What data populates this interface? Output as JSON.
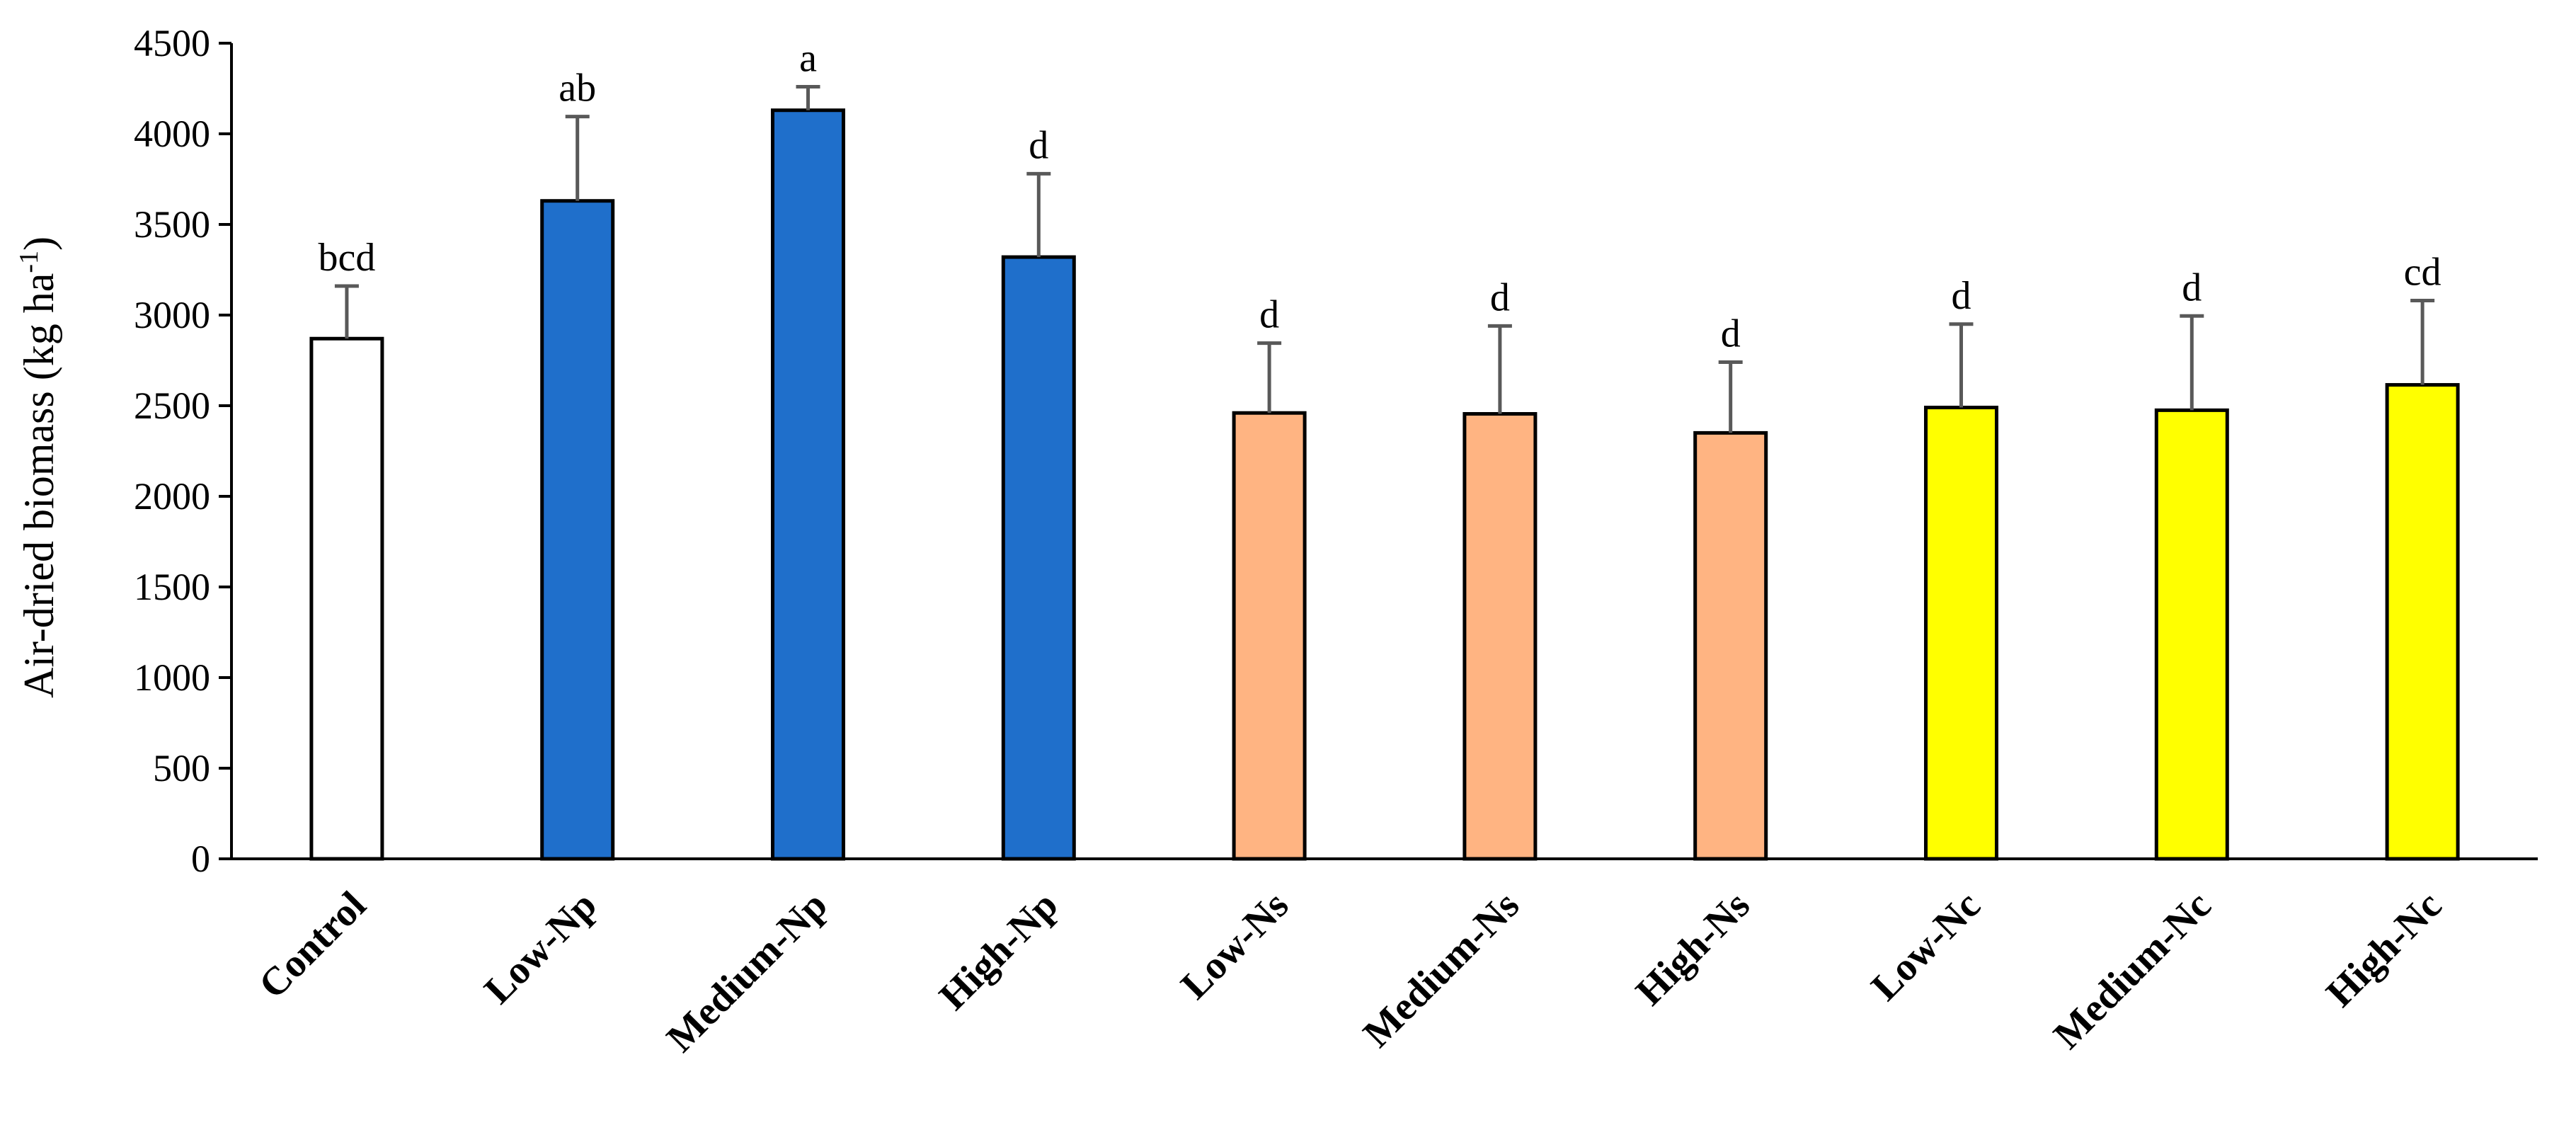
{
  "chart_data": {
    "type": "bar",
    "title": "",
    "xlabel": "",
    "ylabel": {
      "main": "Air-dried biomass (kg ha",
      "sup": "-1",
      "close": ")"
    },
    "ylim": [
      0,
      4500
    ],
    "yticks": [
      0,
      500,
      1000,
      1500,
      2000,
      2500,
      3000,
      3500,
      4000,
      4500
    ],
    "grid": false,
    "categories": [
      "Control",
      "Low-Np",
      "Medium-Np",
      "High-Np",
      "Low-Ns",
      "Medium-Ns",
      "High-Ns",
      "Low-Nc",
      "Medium-Nc",
      "High-Nc"
    ],
    "values": [
      2870,
      3630,
      4130,
      3320,
      2460,
      2455,
      2350,
      2490,
      2475,
      2615
    ],
    "error_upper": [
      290,
      465,
      130,
      460,
      385,
      485,
      390,
      460,
      520,
      465
    ],
    "significance": [
      "bcd",
      "ab",
      "a",
      "d",
      "d",
      "d",
      "d",
      "d",
      "d",
      "cd"
    ],
    "colors": [
      "#FFFFFF",
      "#1F6FCB",
      "#1F6FCB",
      "#1F6FCB",
      "#FFB482",
      "#FFB482",
      "#FFB482",
      "#FFFF00",
      "#FFFF00",
      "#FFFF00"
    ],
    "bar_edge_color": "#000000",
    "error_bar_color": "#595959"
  }
}
